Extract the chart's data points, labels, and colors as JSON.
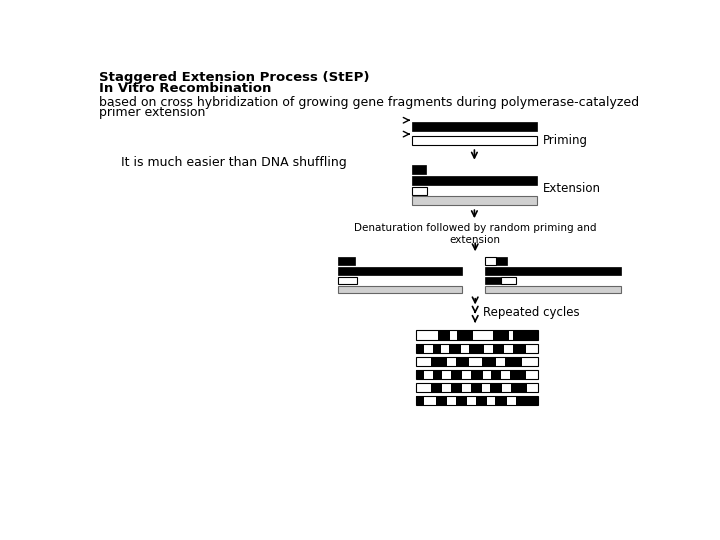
{
  "title_line1": "Staggered Extension Process (StEP)",
  "title_line2": "In Vitro Recombination",
  "desc_line1": "based on cross hybridization of growing gene fragments during polymerase-catalyzed",
  "desc_line2": "primer extension",
  "note": "It is much easier than DNA shuffling",
  "label_priming": "Priming",
  "label_extension": "Extension",
  "label_denaturation": "Denaturation followed by random priming and\nextension",
  "label_repeated": "Repeated cycles",
  "bg_color": "#ffffff",
  "black": "#000000",
  "white": "#ffffff",
  "lightgray": "#d0d0d0",
  "darkgray": "#666666",
  "title_fontsize": 9.5,
  "body_fontsize": 9,
  "note_fontsize": 9,
  "label_fontsize": 8.5,
  "denlabel_fontsize": 7.5
}
